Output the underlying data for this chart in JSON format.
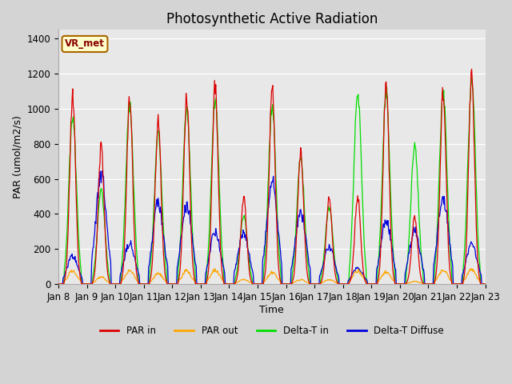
{
  "title": "Photosynthetic Active Radiation",
  "ylabel": "PAR (umol/m2/s)",
  "xlabel": "Time",
  "annotation": "VR_met",
  "ylim": [
    0,
    1450
  ],
  "colors": {
    "par_in": "#dd0000",
    "par_out": "#ffa500",
    "delta_t_in": "#00dd00",
    "delta_t_diffuse": "#0000dd"
  },
  "xtick_labels": [
    "Jan 8",
    "Jan 9",
    "Jan 10",
    "Jan 11",
    "Jan 12",
    "Jan 13",
    "Jan 14",
    "Jan 15",
    "Jan 16",
    "Jan 17",
    "Jan 18",
    "Jan 19",
    "Jan 20",
    "Jan 21",
    "Jan 22",
    "Jan 23"
  ],
  "days": 15,
  "day_peaks": {
    "par_in": [
      1070,
      785,
      1055,
      940,
      1065,
      1130,
      490,
      1120,
      755,
      505,
      500,
      1145,
      385,
      1100,
      1200
    ],
    "par_out": [
      75,
      40,
      75,
      60,
      75,
      80,
      25,
      65,
      25,
      25,
      75,
      70,
      15,
      80,
      80
    ],
    "delta_t_in": [
      960,
      530,
      1020,
      855,
      1010,
      1050,
      390,
      1010,
      720,
      435,
      1090,
      1095,
      800,
      1095,
      1175
    ],
    "delta_t_diff": [
      160,
      620,
      235,
      460,
      450,
      300,
      290,
      575,
      405,
      210,
      90,
      360,
      305,
      490,
      225
    ]
  },
  "fig_bg": "#d4d4d4",
  "ax_bg": "#e8e8e8"
}
